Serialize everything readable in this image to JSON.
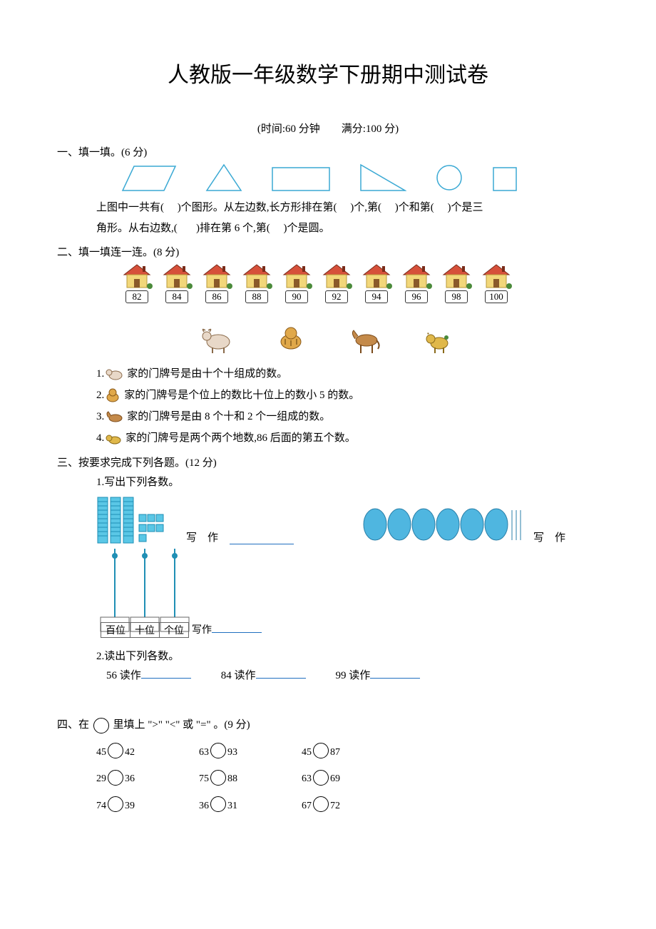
{
  "doc_title": "人教版一年级数学下册期中测试卷",
  "time_score": "(时间:60 分钟　　满分:100 分)",
  "section1": {
    "head": "一、填一填。(6 分)",
    "shapes_color": "#3aa9d4",
    "line1_a": "上图中一共有(",
    "line1_b": ")个图形。从左边数,长方形排在第(",
    "line1_c": ")个,第(",
    "line1_d": ")个和第(",
    "line1_e": ")个是三",
    "line2_a": "角形。从右边数,(",
    "line2_b": ")排在第 6 个,第(",
    "line2_c": ")个是圆。"
  },
  "section2": {
    "head": "二、填一填连一连。(8 分)",
    "house_numbers": [
      "82",
      "84",
      "86",
      "88",
      "90",
      "92",
      "94",
      "96",
      "98",
      "100"
    ],
    "house_roof_fill": "#d6503a",
    "house_roof_stroke": "#7a2c1a",
    "house_wall_fill": "#f2d77a",
    "house_wall_stroke": "#b89a3a",
    "house_shrub": "#4a8a3a",
    "label_border": "#333333",
    "clue1_num": "1.",
    "clue1_text": "家的门牌号是由十个十组成的数。",
    "clue2_num": "2.",
    "clue2_text": "家的门牌号是个位上的数比十位上的数小 5 的数。",
    "clue3_num": "3.",
    "clue3_text": "家的门牌号是由 8 个十和 2 个一组成的数。",
    "clue4_num": "4.",
    "clue4_text": "家的门牌号是两个两个地数,86 后面的第五个数。"
  },
  "section3": {
    "head": "三、按要求完成下列各题。(12 分)",
    "sub1": "1.写出下列各数。",
    "write_label": "写　作",
    "write_label2": "写作",
    "place_labels": [
      "百位",
      "十位",
      "个位"
    ],
    "cube_fill": "#5ac7e6",
    "cube_stroke": "#1f8fb5",
    "bundle_fill": "#4fb6e0",
    "bundle_stroke": "#2a7fa8",
    "place_border": "#666666",
    "sub2": "2.读出下列各数。",
    "reads": [
      {
        "n": "56",
        "l": "读作"
      },
      {
        "n": "84",
        "l": "读作"
      },
      {
        "n": "99",
        "l": "读作"
      }
    ]
  },
  "section4": {
    "head_a": "四、在",
    "head_b": "里填上 \">\"  \"<\" 或 \"=\" 。(9 分)",
    "rows": [
      [
        [
          "45",
          "42"
        ],
        [
          "63",
          "93"
        ],
        [
          "45",
          "87"
        ]
      ],
      [
        [
          "29",
          "36"
        ],
        [
          "75",
          "88"
        ],
        [
          "63",
          "69"
        ]
      ],
      [
        [
          "74",
          "39"
        ],
        [
          "36",
          "31"
        ],
        [
          "67",
          "72"
        ]
      ]
    ]
  }
}
